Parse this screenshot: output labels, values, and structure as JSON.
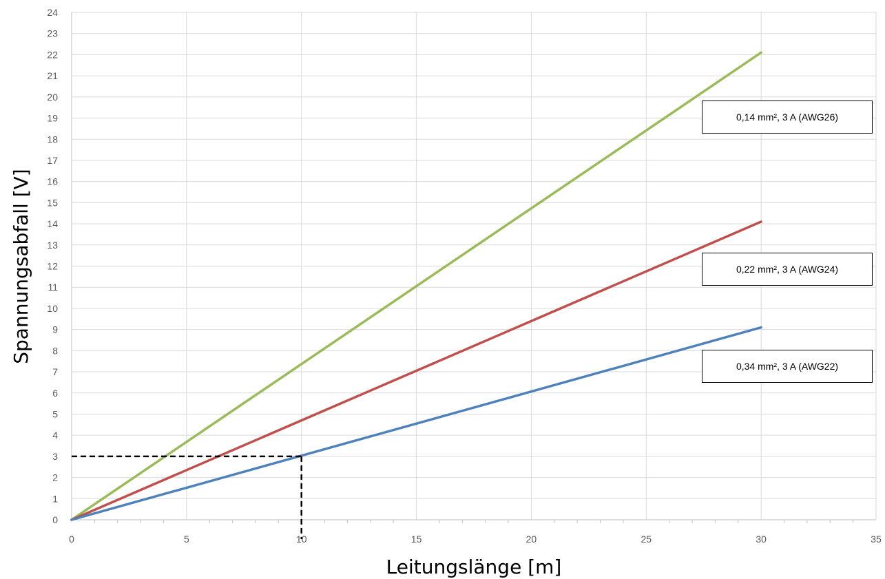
{
  "chart_data": {
    "type": "line",
    "title": "",
    "xlabel": "Leitungslänge [m]",
    "ylabel": "Spannungsabfall [V]",
    "xlim": [
      0,
      35
    ],
    "ylim": [
      0,
      24
    ],
    "xticks": [
      "0",
      "5",
      "10",
      "15",
      "20",
      "25",
      "30",
      "35"
    ],
    "yticks": [
      "0",
      "1",
      "2",
      "3",
      "4",
      "5",
      "6",
      "7",
      "8",
      "9",
      "10",
      "11",
      "12",
      "13",
      "14",
      "15",
      "16",
      "17",
      "18",
      "19",
      "20",
      "21",
      "22",
      "23",
      "24"
    ],
    "grid": true,
    "series": [
      {
        "name": "0,14 mm², 3 A (AWG26)",
        "color": "#9bbb59",
        "x": [
          0,
          30
        ],
        "y": [
          0,
          22.1
        ]
      },
      {
        "name": "0,22 mm², 3 A (AWG24)",
        "color": "#c0504d",
        "x": [
          0,
          30
        ],
        "y": [
          0,
          14.1
        ]
      },
      {
        "name": "0,34 mm², 3 A (AWG22)",
        "color": "#4f81bd",
        "x": [
          0,
          30
        ],
        "y": [
          0,
          9.1
        ]
      }
    ],
    "guide": {
      "x": 10,
      "y": 3,
      "style": "dashed",
      "color": "#000000"
    }
  }
}
